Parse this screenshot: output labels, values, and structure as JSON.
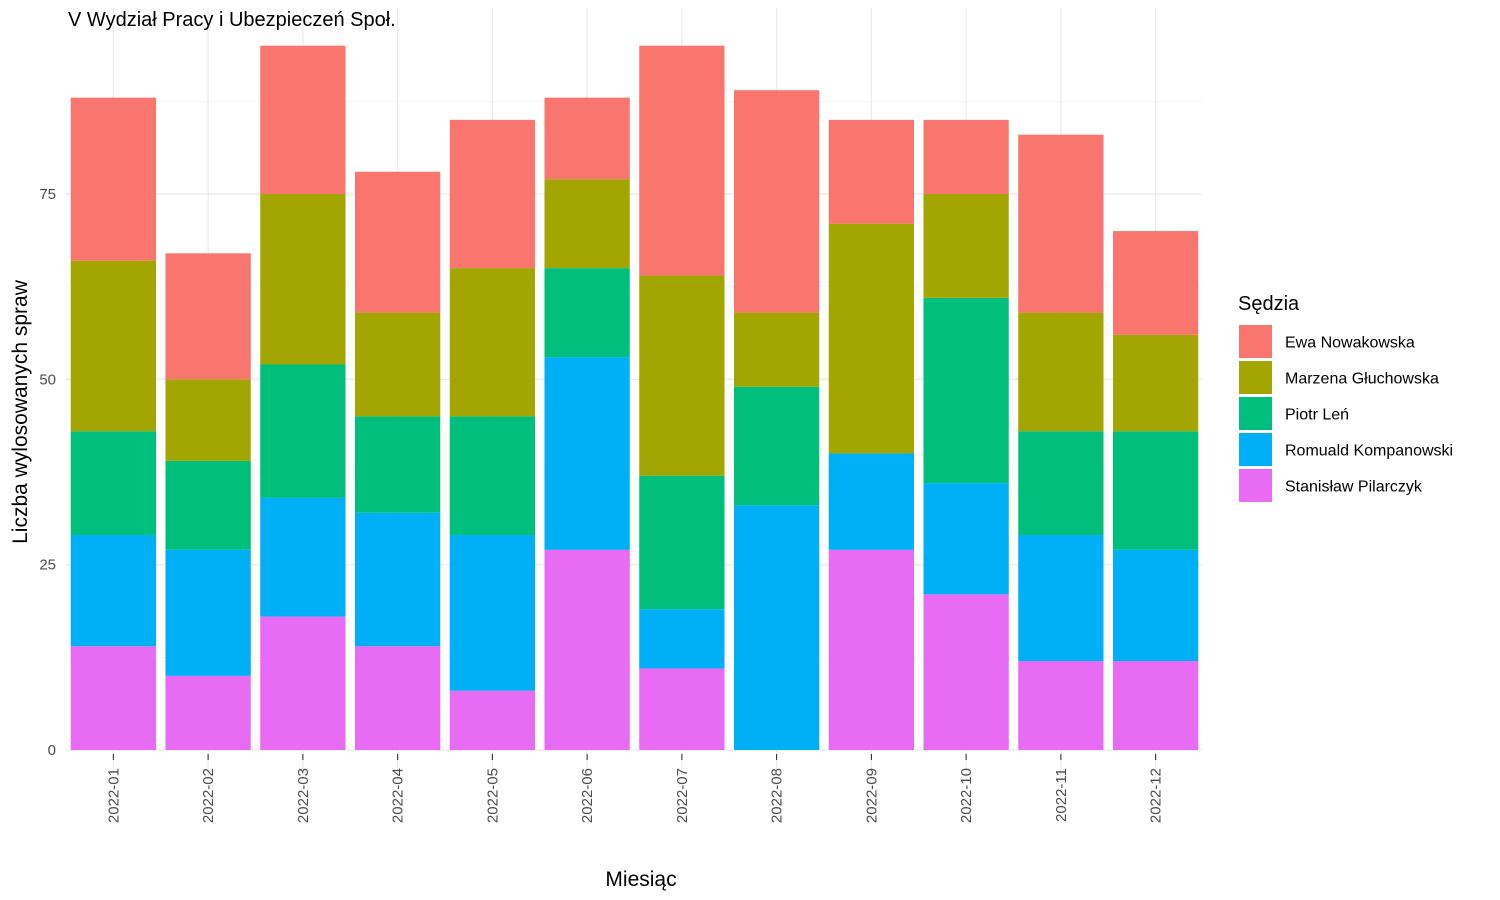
{
  "chart_data": {
    "type": "bar",
    "stacked": true,
    "title": "V Wydział Pracy i Ubezpieczeń Społ.",
    "xlabel": "Miesiąc",
    "ylabel": "Liczba wylosowanych spraw",
    "ylim": [
      0,
      95
    ],
    "yticks": [
      0,
      25,
      50,
      75
    ],
    "grid": true,
    "legend_position": "right",
    "legend_title": "Sędzia",
    "categories": [
      "2022-01",
      "2022-02",
      "2022-03",
      "2022-04",
      "2022-05",
      "2022-06",
      "2022-07",
      "2022-08",
      "2022-09",
      "2022-10",
      "2022-11",
      "2022-12"
    ],
    "series": [
      {
        "name": "Ewa Nowakowska",
        "color": "#F8766D",
        "values": [
          22,
          17,
          20,
          19,
          20,
          11,
          31,
          30,
          14,
          10,
          24,
          14
        ]
      },
      {
        "name": "Marzena Głuchowska",
        "color": "#A3A500",
        "values": [
          23,
          11,
          23,
          14,
          20,
          12,
          27,
          10,
          31,
          14,
          16,
          13
        ]
      },
      {
        "name": "Piotr Leń",
        "color": "#00BF7D",
        "values": [
          14,
          12,
          18,
          13,
          16,
          12,
          18,
          16,
          0,
          25,
          14,
          16
        ]
      },
      {
        "name": "Romuald Kompanowski",
        "color": "#00B0F6",
        "values": [
          15,
          17,
          16,
          18,
          21,
          26,
          8,
          33,
          13,
          15,
          17,
          15
        ]
      },
      {
        "name": "Stanisław Pilarczyk",
        "color": "#E76BF3",
        "values": [
          14,
          10,
          18,
          14,
          8,
          27,
          11,
          0,
          27,
          21,
          12,
          12
        ]
      }
    ]
  }
}
